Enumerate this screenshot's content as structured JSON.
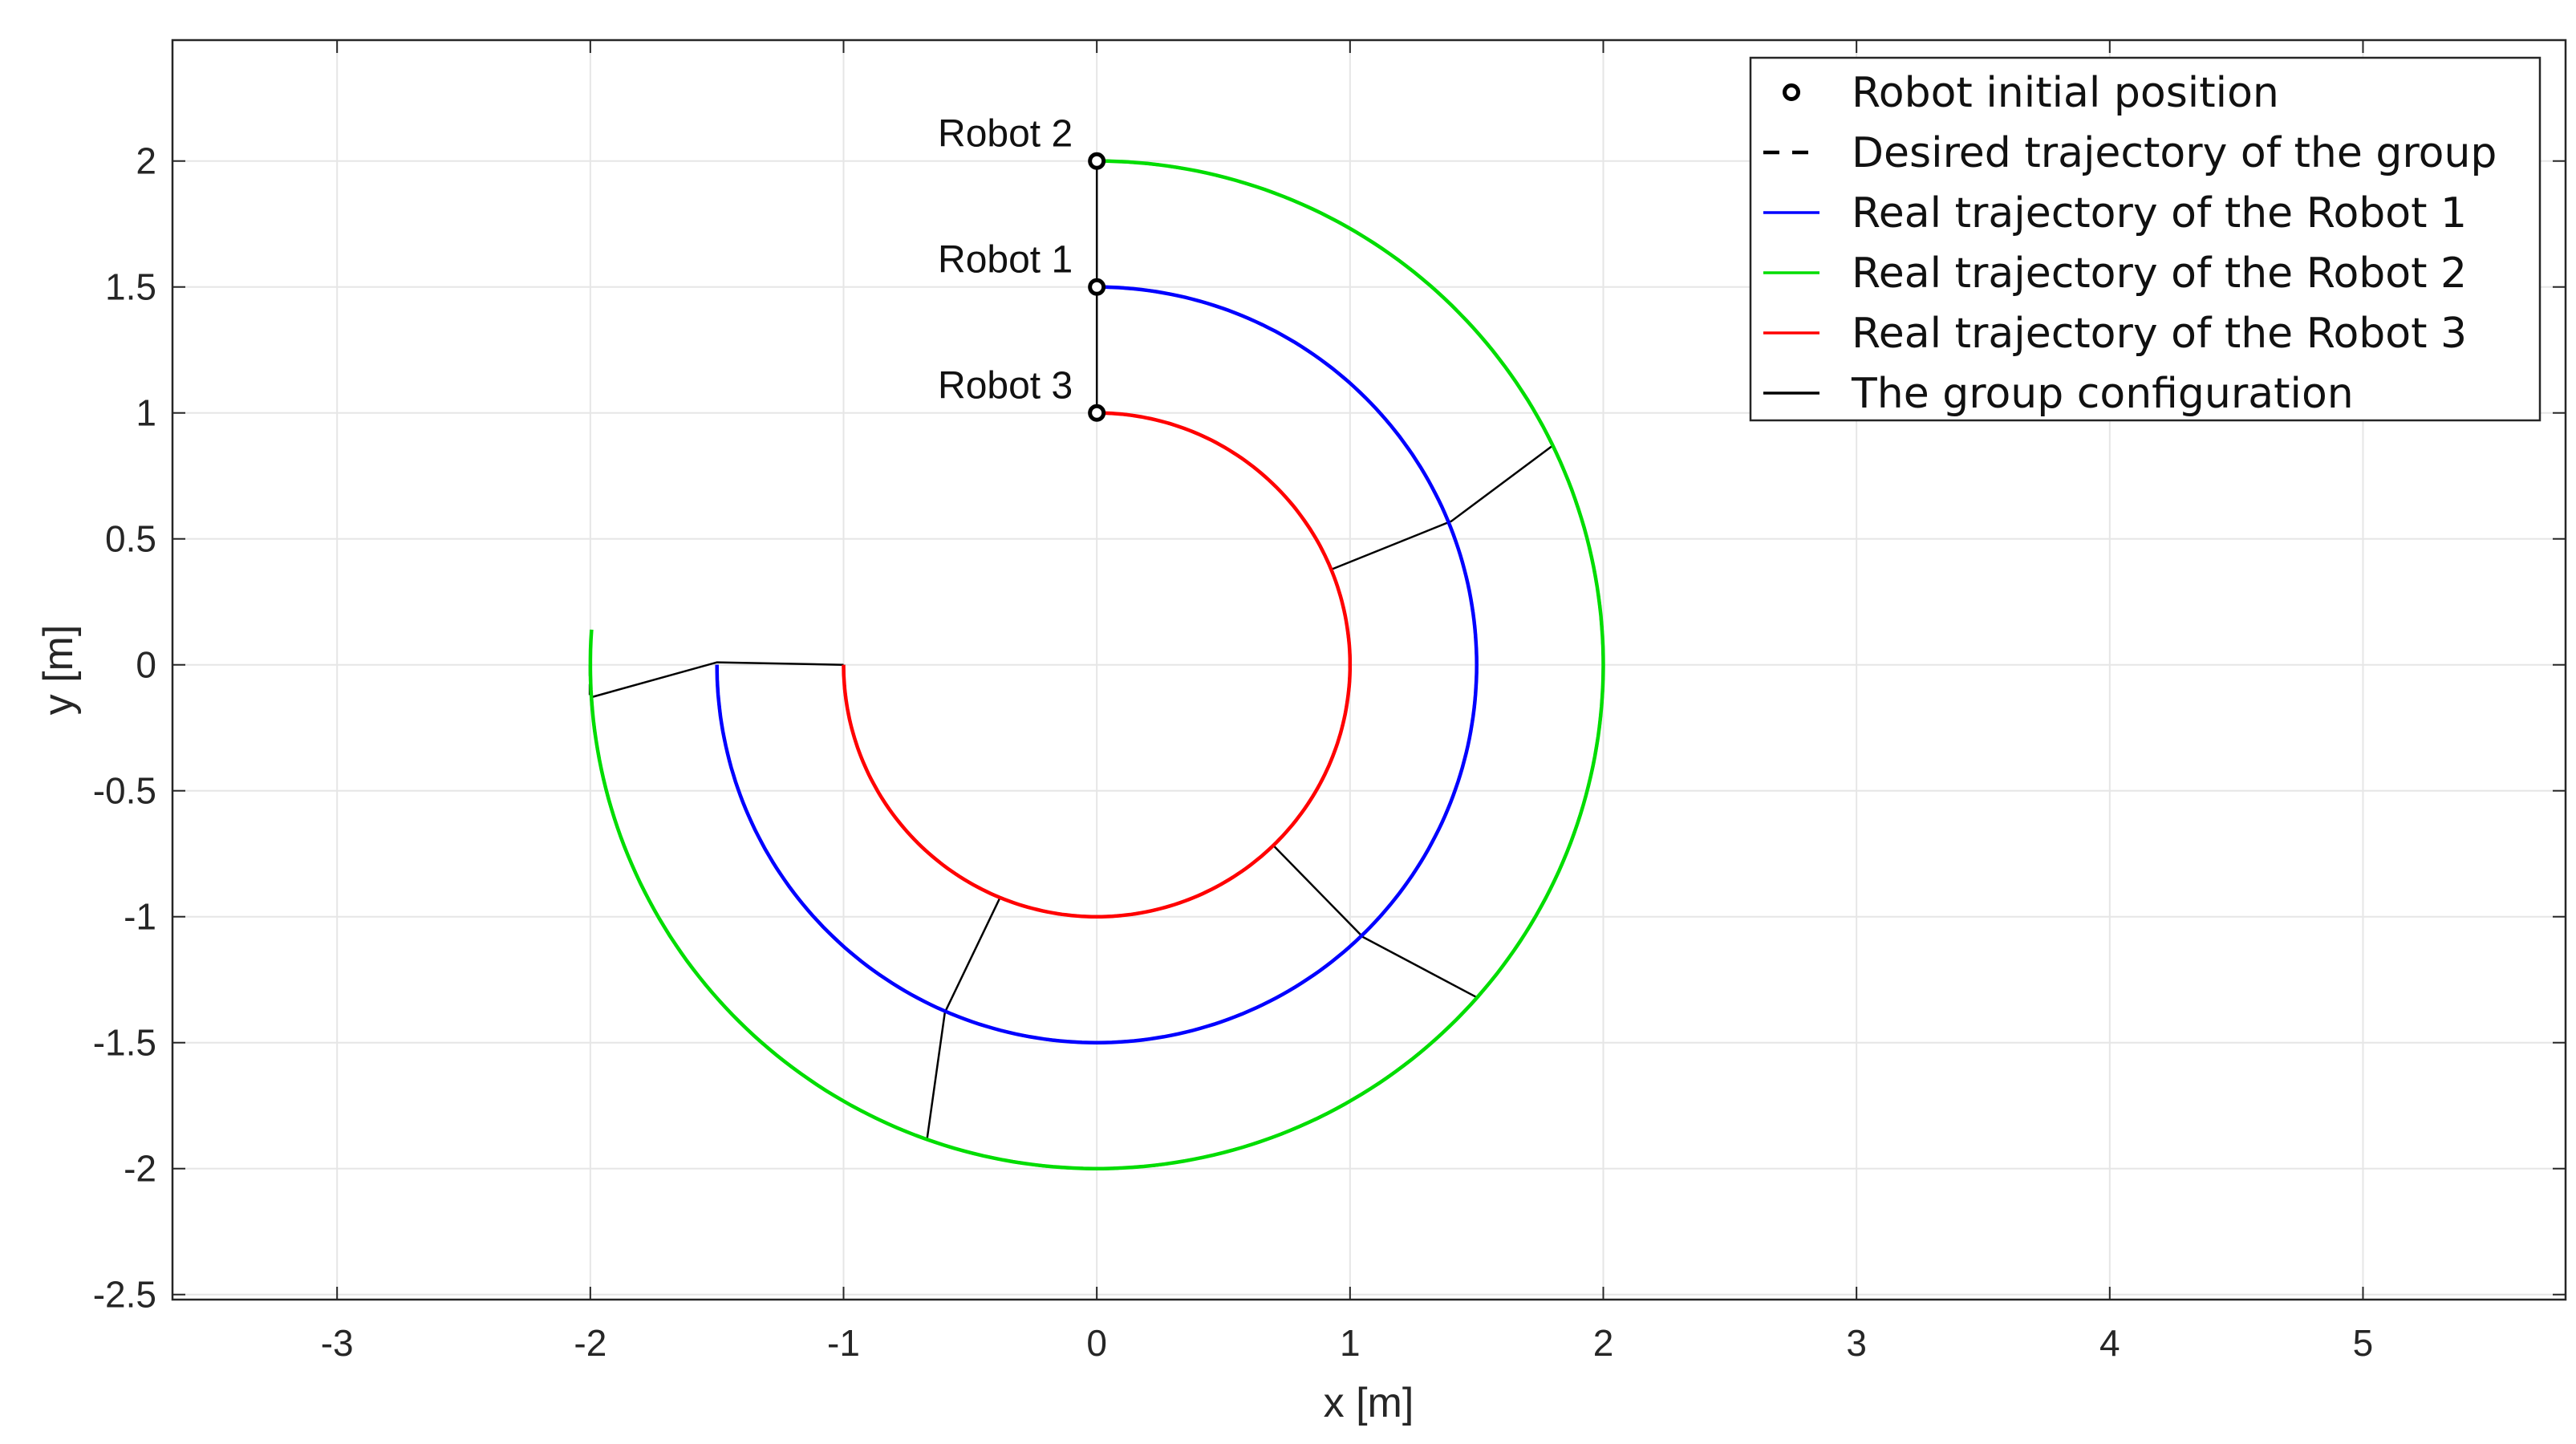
{
  "chart_data": {
    "type": "line",
    "title": "",
    "xlabel": "x [m]",
    "ylabel": "y [m]",
    "xlim": [
      -3.65,
      5.8
    ],
    "ylim": [
      -2.52,
      2.48
    ],
    "xticks": [
      "-3",
      "-2",
      "-1",
      "0",
      "1",
      "2",
      "3",
      "4",
      "5"
    ],
    "xtick_values": [
      -3,
      -2,
      -1,
      0,
      1,
      2,
      3,
      4,
      5
    ],
    "yticks": [
      "2",
      "1.5",
      "1",
      "0.5",
      "0",
      "-0.5",
      "-1",
      "-1.5",
      "-2",
      "-2.5"
    ],
    "ytick_values": [
      2,
      1.5,
      1,
      0.5,
      0,
      -0.5,
      -1,
      -1.5,
      -2,
      -2.5
    ],
    "grid": true,
    "legend_position": "top-right",
    "legend": [
      {
        "label": "Robot initial position",
        "style": "marker",
        "color": "#000000"
      },
      {
        "label": "Desired trajectory of the group",
        "style": "dashed",
        "color": "#000000"
      },
      {
        "label": "Real trajectory of the Robot 1",
        "style": "solid",
        "color": "#0000ff"
      },
      {
        "label": "Real trajectory of the Robot 2",
        "style": "solid",
        "color": "#00dd00"
      },
      {
        "label": "Real trajectory of the Robot 3",
        "style": "solid",
        "color": "#ff0000"
      },
      {
        "label": "The group configuration",
        "style": "solid",
        "color": "#000000"
      }
    ],
    "series": [
      {
        "name": "Real trajectory of the Robot 1",
        "color": "#0000ff",
        "radius": 1.5,
        "start_angle_deg": 90,
        "end_angle_deg": -180,
        "direction": "clockwise"
      },
      {
        "name": "Real trajectory of the Robot 2",
        "color": "#00dd00",
        "radius": 2.0,
        "start_angle_deg": 90,
        "end_angle_deg": -184,
        "direction": "clockwise"
      },
      {
        "name": "Real trajectory of the Robot 3",
        "color": "#ff0000",
        "radius": 1.0,
        "start_angle_deg": 90,
        "end_angle_deg": -180,
        "direction": "clockwise"
      }
    ],
    "desired_trajectory_radii": [
      1.0,
      1.5,
      2.0
    ],
    "initial_positions": [
      {
        "robot": "Robot 2",
        "x": 0,
        "y": 2.0
      },
      {
        "robot": "Robot 1",
        "x": 0,
        "y": 1.5
      },
      {
        "robot": "Robot 3",
        "x": 0,
        "y": 1.0
      }
    ],
    "robot_labels": [
      {
        "text": "Robot 2",
        "x": 0,
        "y": 2.0
      },
      {
        "text": "Robot 1",
        "x": 0,
        "y": 1.5
      },
      {
        "text": "Robot 3",
        "x": 0,
        "y": 1.0
      }
    ],
    "group_configurations": [
      {
        "points": [
          [
            0,
            2.0
          ],
          [
            0,
            1.5
          ],
          [
            0,
            1.0
          ]
        ]
      },
      {
        "points": [
          [
            1.8,
            0.87
          ],
          [
            1.4,
            0.57
          ],
          [
            0.93,
            0.38
          ]
        ]
      },
      {
        "points": [
          [
            1.5,
            -1.32
          ],
          [
            1.05,
            -1.08
          ],
          [
            0.7,
            -0.72
          ]
        ]
      },
      {
        "points": [
          [
            -0.67,
            -1.88
          ],
          [
            -0.6,
            -1.38
          ],
          [
            -0.38,
            -0.92
          ]
        ]
      },
      {
        "points": [
          [
            -2.0,
            -0.13
          ],
          [
            -1.5,
            0.01
          ],
          [
            -1.0,
            0.0
          ]
        ]
      }
    ],
    "desired_end_marker": {
      "x": -2.0,
      "y_from": 0.0,
      "y_to": -0.12
    }
  }
}
